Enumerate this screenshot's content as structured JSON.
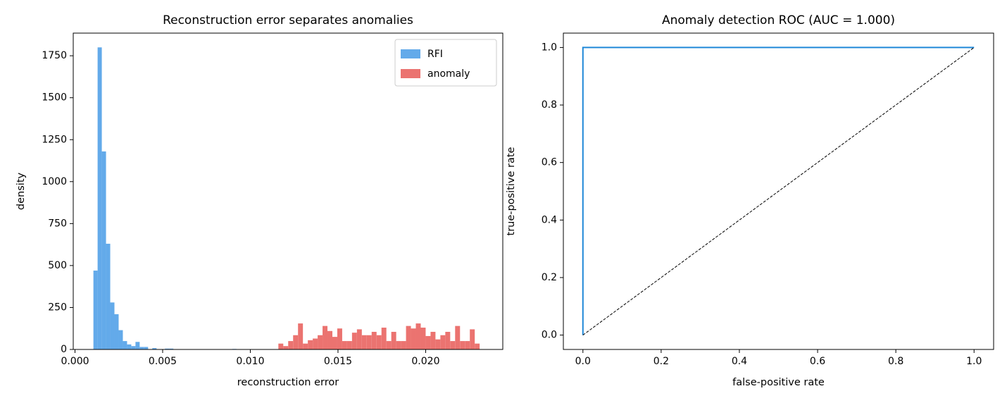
{
  "chart_data": [
    {
      "type": "histogram",
      "title": "Reconstruction error separates anomalies",
      "xlabel": "reconstruction error",
      "ylabel": "density",
      "xlim": [
        -0.0001,
        0.0244
      ],
      "ylim": [
        0,
        1885
      ],
      "xticks": [
        {
          "value": 0,
          "label": "0.000"
        },
        0.005,
        {
          "value": 0.01,
          "label": "0.010"
        },
        0.015,
        {
          "value": 0.02,
          "label": "0.020"
        }
      ],
      "yticks": [
        0,
        250,
        500,
        750,
        1000,
        1250,
        1500,
        1750
      ],
      "legend": "upper right",
      "series": [
        {
          "name": "RFI",
          "color": "#63aaea",
          "bins": [
            0.00105,
            0.00129,
            0.00153,
            0.00177,
            0.00201,
            0.00225,
            0.00249,
            0.00273,
            0.00297,
            0.00321,
            0.00345,
            0.00369,
            0.00393,
            0.00417,
            0.00441,
            0.00465,
            0.00489,
            0.00513,
            0.00537,
            0.00561,
            0.00585,
            0.00609,
            0.00633,
            0.00657,
            0.00681,
            0.00705,
            0.00729,
            0.00753,
            0.00777,
            0.00801,
            0.00825,
            0.00849,
            0.00873,
            0.00897,
            0.00921,
            0.00945
          ],
          "values": [
            470,
            1800,
            1180,
            630,
            280,
            210,
            115,
            50,
            30,
            20,
            45,
            15,
            15,
            0,
            8,
            0,
            0,
            5,
            5,
            0,
            0,
            0,
            0,
            0,
            0,
            0,
            0,
            0,
            0,
            0,
            0,
            0,
            0,
            3,
            0
          ]
        },
        {
          "name": "anomaly",
          "color": "#eb7370",
          "bins": [
            0.0116,
            0.01188,
            0.01216,
            0.01244,
            0.01272,
            0.013,
            0.01328,
            0.01356,
            0.01384,
            0.01412,
            0.0144,
            0.01468,
            0.01496,
            0.01524,
            0.01552,
            0.0158,
            0.01608,
            0.01636,
            0.01664,
            0.01692,
            0.0172,
            0.01748,
            0.01776,
            0.01804,
            0.01832,
            0.0186,
            0.01888,
            0.01916,
            0.01944,
            0.01972,
            0.02,
            0.02028,
            0.02056,
            0.02084,
            0.02112,
            0.0214,
            0.02168,
            0.02196,
            0.02224,
            0.02252,
            0.0228,
            0.02308
          ],
          "values": [
            35,
            20,
            50,
            85,
            155,
            35,
            55,
            65,
            85,
            140,
            110,
            75,
            125,
            50,
            50,
            100,
            120,
            85,
            85,
            105,
            85,
            130,
            50,
            105,
            50,
            50,
            140,
            125,
            155,
            130,
            80,
            105,
            60,
            85,
            105,
            50,
            140,
            50,
            50,
            120,
            35
          ]
        }
      ]
    },
    {
      "type": "line",
      "title": "Anomaly detection ROC (AUC = 1.000)",
      "xlabel": "false-positive rate",
      "ylabel": "true-positive rate",
      "xlim": [
        -0.05,
        1.05
      ],
      "ylim": [
        -0.05,
        1.05
      ],
      "xticks": [
        {
          "value": 0,
          "label": "0.0"
        },
        0.2,
        0.4,
        0.6,
        0.8,
        {
          "value": 1,
          "label": "1.0"
        }
      ],
      "yticks": [
        {
          "value": 0,
          "label": "0.0"
        },
        0.2,
        0.4,
        0.6,
        0.8,
        {
          "value": 1,
          "label": "1.0"
        }
      ],
      "series": [
        {
          "color": "#1f88d8",
          "x": [
            0,
            0,
            1
          ],
          "values": [
            0,
            1,
            1
          ]
        },
        {
          "color": "#000000",
          "dashed": true,
          "x": [
            0,
            1
          ],
          "values": [
            0,
            1
          ]
        }
      ]
    }
  ]
}
